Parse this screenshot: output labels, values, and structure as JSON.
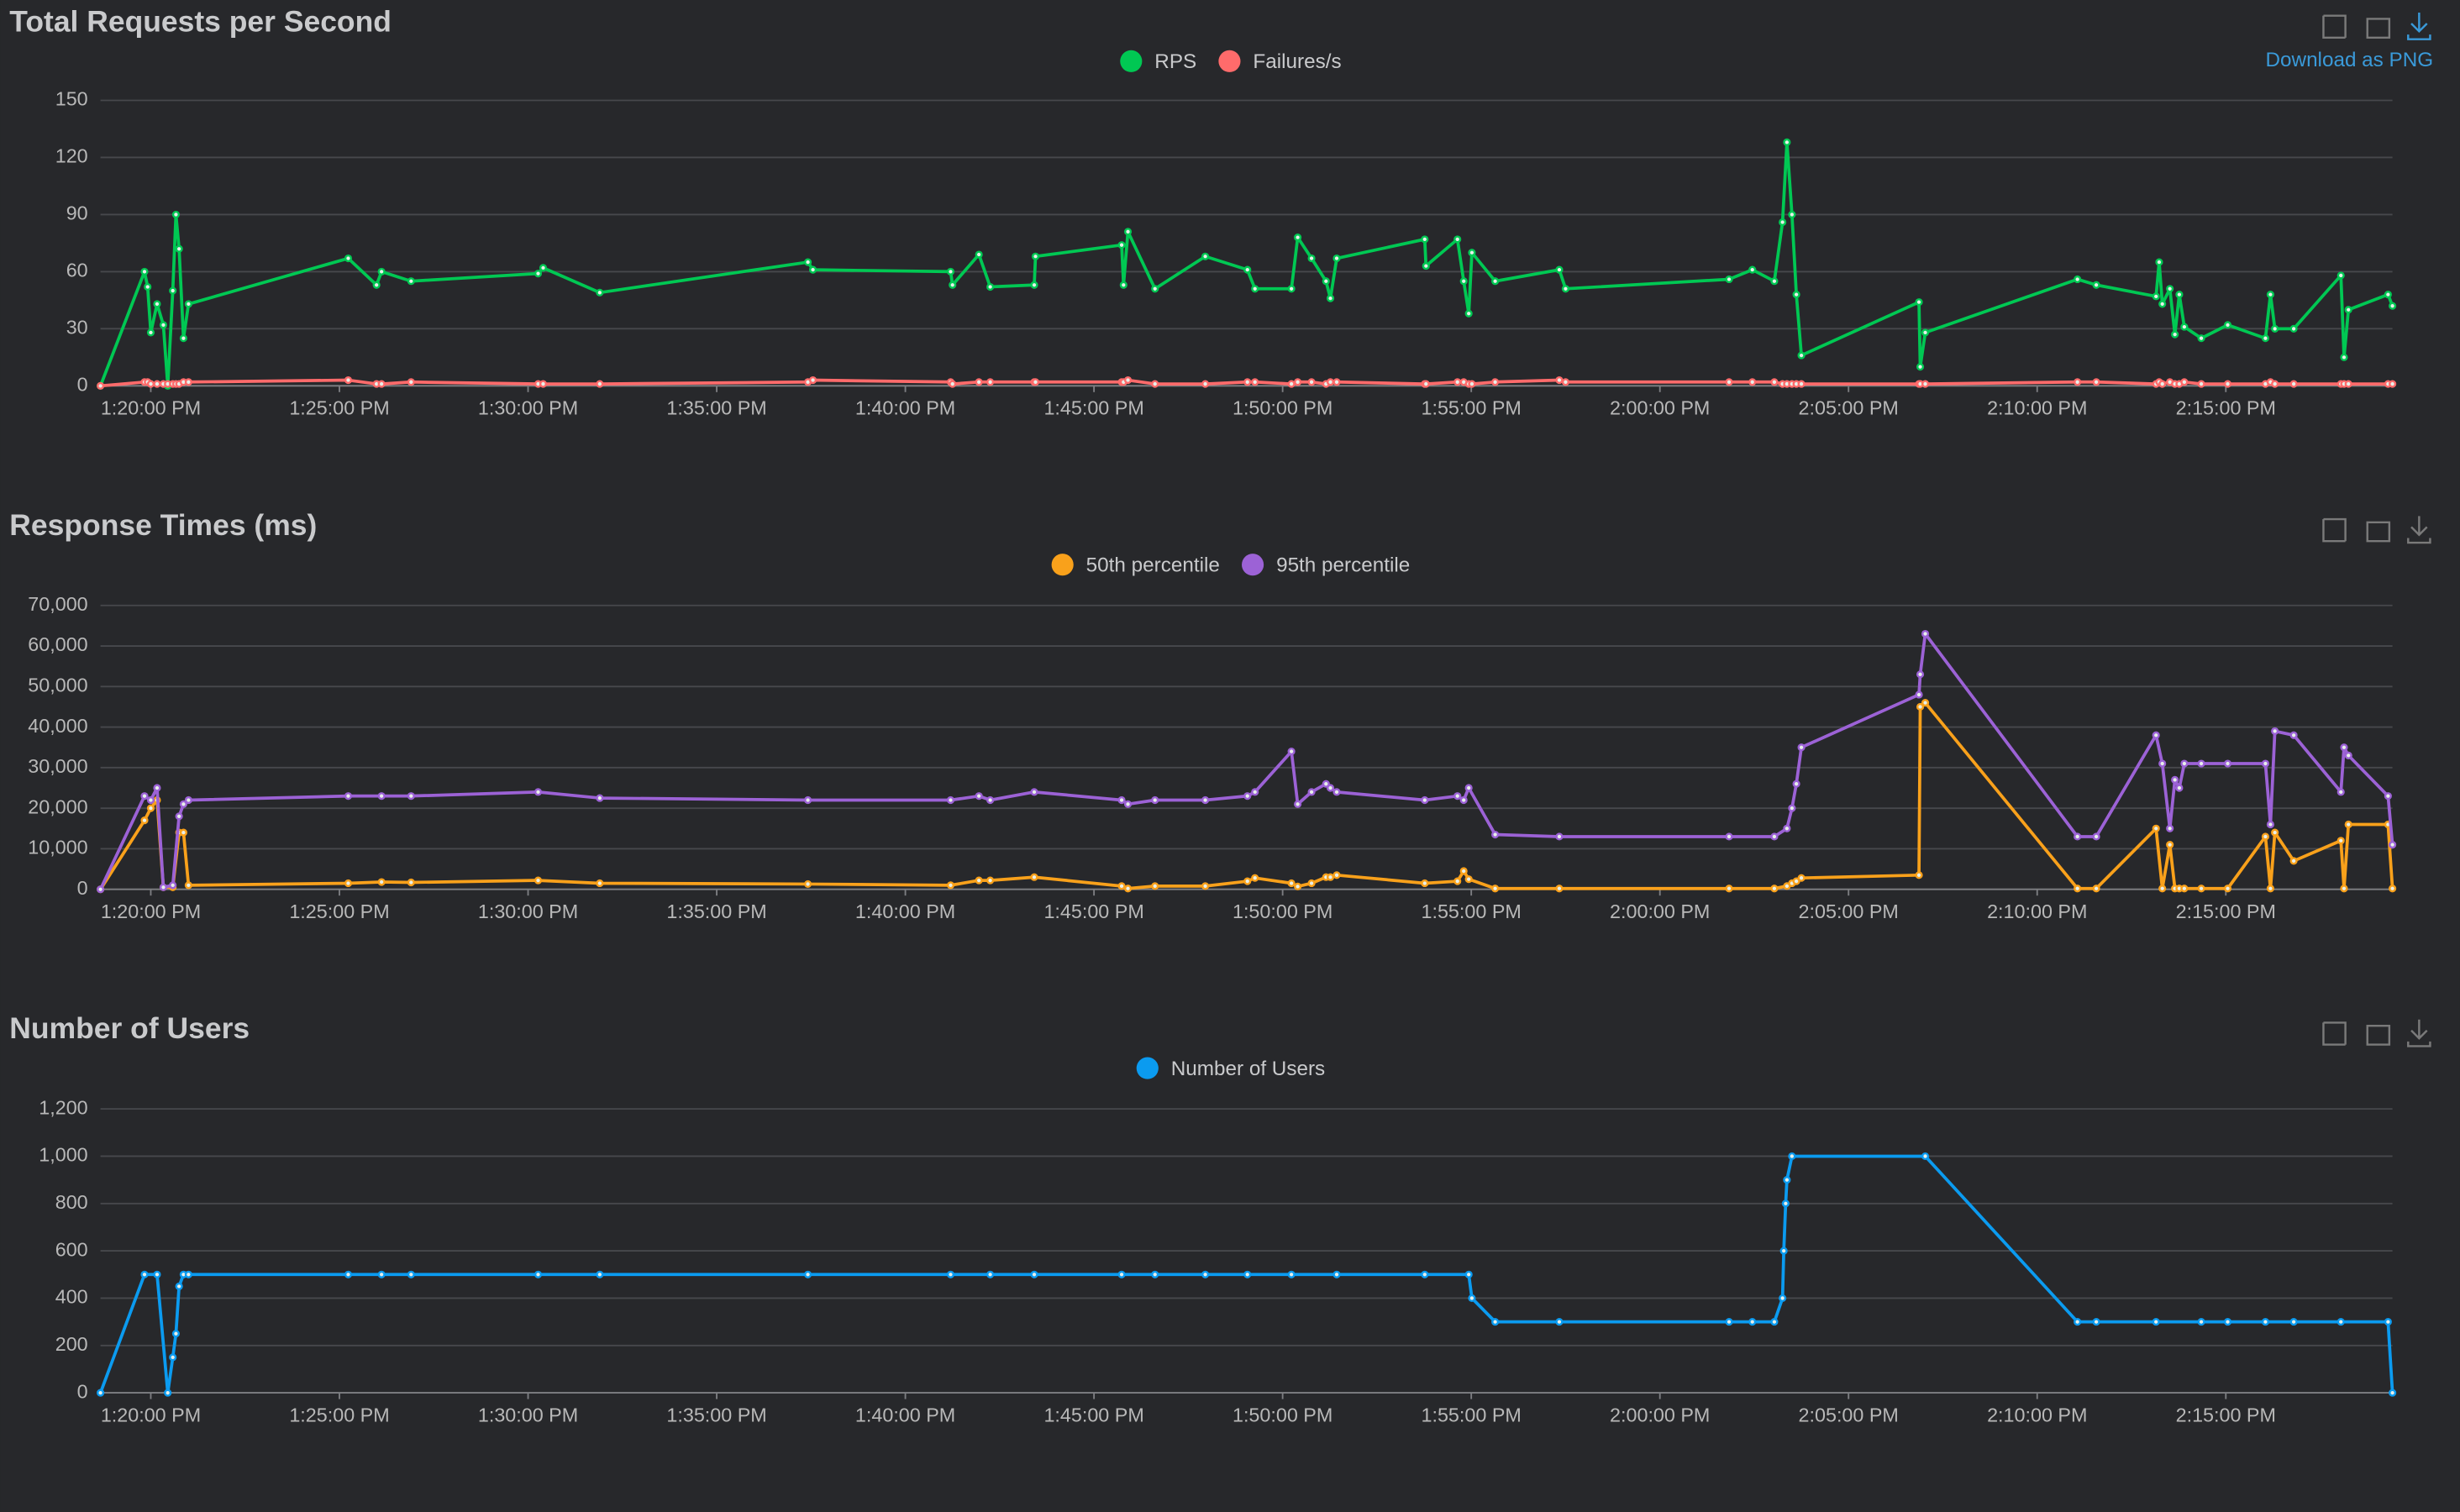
{
  "chart_data": [
    {
      "type": "line",
      "title": "Total Requests per Second",
      "toolbox_label": "Download as PNG",
      "legend": "top",
      "grid": true,
      "x": [
        "1:18:40 PM",
        "1:19:50 PM",
        "1:19:55 PM",
        "1:20:00 PM",
        "1:20:10 PM",
        "1:20:20 PM",
        "1:20:27 PM",
        "1:20:35 PM",
        "1:20:40 PM",
        "1:20:45 PM",
        "1:20:52 PM",
        "1:21:00 PM",
        "1:25:14 PM",
        "1:25:59 PM",
        "1:26:07 PM",
        "1:26:54 PM",
        "1:30:16 PM",
        "1:30:24 PM",
        "1:31:54 PM",
        "1:37:25 PM",
        "1:37:33 PM",
        "1:41:12 PM",
        "1:41:15 PM",
        "1:41:57 PM",
        "1:42:15 PM",
        "1:43:25 PM",
        "1:43:27 PM",
        "1:45:44 PM",
        "1:45:47 PM",
        "1:45:54 PM",
        "1:46:37 PM",
        "1:47:57 PM",
        "1:49:04 PM",
        "1:49:16 PM",
        "1:50:14 PM",
        "1:50:24 PM",
        "1:50:46 PM",
        "1:51:09 PM",
        "1:51:16 PM",
        "1:51:26 PM",
        "1:53:46 PM",
        "1:53:48 PM",
        "1:54:38 PM",
        "1:54:48 PM",
        "1:54:56 PM",
        "1:55:01 PM",
        "1:55:38 PM",
        "1:57:20 PM",
        "1:57:30 PM",
        "2:01:50 PM",
        "2:02:27 PM",
        "2:03:02 PM",
        "2:03:15 PM",
        "2:03:22 PM",
        "2:03:30 PM",
        "2:03:37 PM",
        "2:03:45 PM",
        "2:06:52 PM",
        "2:06:54 PM",
        "2:07:02 PM",
        "2:11:04 PM",
        "2:11:34 PM",
        "2:13:09 PM",
        "2:13:14 PM",
        "2:13:19 PM",
        "2:13:31 PM",
        "2:13:39 PM",
        "2:13:46 PM",
        "2:13:54 PM",
        "2:14:21 PM",
        "2:15:03 PM",
        "2:16:03 PM",
        "2:16:11 PM",
        "2:16:18 PM",
        "2:16:48 PM",
        "2:18:03 PM",
        "2:18:08 PM",
        "2:18:15 PM",
        "2:19:18 PM",
        "2:19:25 PM"
      ],
      "xlim": [
        "1:18:40 PM",
        "2:19:25 PM"
      ],
      "xticks": [
        "1:20:00 PM",
        "1:25:00 PM",
        "1:30:00 PM",
        "1:35:00 PM",
        "1:40:00 PM",
        "1:45:00 PM",
        "1:50:00 PM",
        "1:55:00 PM",
        "2:00:00 PM",
        "2:05:00 PM",
        "2:10:00 PM",
        "2:15:00 PM"
      ],
      "ylim": [
        0,
        150
      ],
      "yticks": [
        0,
        30,
        60,
        90,
        120,
        150
      ],
      "series": [
        {
          "name": "RPS",
          "color": "#00c853",
          "values": [
            0,
            60,
            52,
            28,
            43,
            32,
            0,
            50,
            90,
            72,
            25,
            43,
            67,
            53,
            60,
            55,
            59,
            62,
            49,
            65,
            61,
            60,
            53,
            69,
            52,
            53,
            68,
            74,
            53,
            81,
            51,
            68,
            61,
            51,
            51,
            78,
            67,
            55,
            46,
            67,
            77,
            63,
            77,
            55,
            38,
            70,
            55,
            61,
            51,
            56,
            61,
            55,
            86,
            128,
            90,
            48,
            16,
            44,
            10,
            28,
            56,
            53,
            47,
            65,
            43,
            51,
            27,
            48,
            31,
            25,
            32,
            25,
            48,
            30,
            30,
            58,
            15,
            40,
            48,
            42
          ]
        },
        {
          "name": "Failures/s",
          "color": "#ff6b6b",
          "values": [
            0,
            2,
            2,
            1,
            1,
            1,
            1,
            1,
            1,
            1,
            2,
            2,
            3,
            1,
            1,
            2,
            1,
            1,
            1,
            2,
            3,
            2,
            1,
            2,
            2,
            2,
            2,
            2,
            2,
            3,
            1,
            1,
            2,
            2,
            1,
            2,
            2,
            1,
            2,
            2,
            1,
            1,
            2,
            2,
            1,
            1,
            2,
            3,
            2,
            2,
            2,
            2,
            1,
            1,
            1,
            1,
            1,
            1,
            1,
            1,
            2,
            2,
            1,
            2,
            1,
            2,
            1,
            1,
            2,
            1,
            1,
            1,
            2,
            1,
            1,
            1,
            1,
            1,
            1,
            1
          ]
        }
      ]
    },
    {
      "type": "line",
      "title": "Response Times (ms)",
      "legend": "top",
      "grid": true,
      "x": [
        "1:18:40 PM",
        "1:19:50 PM",
        "1:20:00 PM",
        "1:20:10 PM",
        "1:20:20 PM",
        "1:20:35 PM",
        "1:20:45 PM",
        "1:20:52 PM",
        "1:21:00 PM",
        "1:25:14 PM",
        "1:26:07 PM",
        "1:26:54 PM",
        "1:30:16 PM",
        "1:31:54 PM",
        "1:37:25 PM",
        "1:41:12 PM",
        "1:41:57 PM",
        "1:42:15 PM",
        "1:43:25 PM",
        "1:45:44 PM",
        "1:45:54 PM",
        "1:46:37 PM",
        "1:47:57 PM",
        "1:49:04 PM",
        "1:49:16 PM",
        "1:50:14 PM",
        "1:50:24 PM",
        "1:50:46 PM",
        "1:51:09 PM",
        "1:51:16 PM",
        "1:51:26 PM",
        "1:53:46 PM",
        "1:54:38 PM",
        "1:54:48 PM",
        "1:54:56 PM",
        "1:55:38 PM",
        "1:57:20 PM",
        "2:01:50 PM",
        "2:03:02 PM",
        "2:03:22 PM",
        "2:03:30 PM",
        "2:03:37 PM",
        "2:03:45 PM",
        "2:06:52 PM",
        "2:06:54 PM",
        "2:07:02 PM",
        "2:11:04 PM",
        "2:11:34 PM",
        "2:13:09 PM",
        "2:13:19 PM",
        "2:13:31 PM",
        "2:13:39 PM",
        "2:13:46 PM",
        "2:13:54 PM",
        "2:14:21 PM",
        "2:15:03 PM",
        "2:16:03 PM",
        "2:16:11 PM",
        "2:16:18 PM",
        "2:16:48 PM",
        "2:18:03 PM",
        "2:18:08 PM",
        "2:18:15 PM",
        "2:19:18 PM",
        "2:19:25 PM"
      ],
      "xlim": [
        "1:18:40 PM",
        "2:19:25 PM"
      ],
      "xticks": [
        "1:20:00 PM",
        "1:25:00 PM",
        "1:30:00 PM",
        "1:35:00 PM",
        "1:40:00 PM",
        "1:45:00 PM",
        "1:50:00 PM",
        "1:55:00 PM",
        "2:00:00 PM",
        "2:05:00 PM",
        "2:10:00 PM",
        "2:15:00 PM"
      ],
      "ylim": [
        0,
        70000
      ],
      "yticks": [
        0,
        {
          "value": 10000,
          "label": "10,000"
        },
        {
          "value": 20000,
          "label": "20,000"
        },
        {
          "value": 30000,
          "label": "30,000"
        },
        {
          "value": 40000,
          "label": "40,000"
        },
        {
          "value": 50000,
          "label": "50,000"
        },
        {
          "value": 60000,
          "label": "60,000"
        },
        {
          "value": 70000,
          "label": "70,000"
        }
      ],
      "series": [
        {
          "name": "50th percentile",
          "color": "#f9a11b",
          "values": [
            0,
            17000,
            20000,
            22000,
            500,
            500,
            14000,
            14000,
            1000,
            1500,
            1800,
            1700,
            2200,
            1500,
            1300,
            1000,
            2200,
            2200,
            3000,
            800,
            200,
            800,
            800,
            2000,
            2800,
            1500,
            700,
            1500,
            3000,
            3000,
            3500,
            1500,
            2000,
            4500,
            2500,
            200,
            200,
            200,
            200,
            800,
            1500,
            2000,
            2800,
            3500,
            45000,
            46000,
            200,
            200,
            15000,
            200,
            11000,
            200,
            200,
            200,
            200,
            200,
            13000,
            200,
            14000,
            7000,
            12000,
            200,
            16000,
            16000,
            200
          ]
        },
        {
          "name": "95th percentile",
          "color": "#9c62d6",
          "values": [
            0,
            23000,
            22000,
            25000,
            500,
            1000,
            18000,
            21000,
            22000,
            23000,
            23000,
            23000,
            24000,
            22500,
            22000,
            22000,
            23000,
            22000,
            24000,
            22000,
            21000,
            22000,
            22000,
            23000,
            24000,
            34000,
            21000,
            24000,
            26000,
            25000,
            24000,
            22000,
            23000,
            22000,
            25000,
            13500,
            13000,
            13000,
            13000,
            15000,
            20000,
            26000,
            35000,
            48000,
            53000,
            63000,
            13000,
            13000,
            38000,
            31000,
            15000,
            27000,
            25000,
            31000,
            31000,
            31000,
            31000,
            16000,
            39000,
            38000,
            24000,
            35000,
            33000,
            23000,
            11000
          ]
        }
      ]
    },
    {
      "type": "line",
      "title": "Number of Users",
      "legend": "top",
      "grid": true,
      "x": [
        "1:18:40 PM",
        "1:19:50 PM",
        "1:20:10 PM",
        "1:20:27 PM",
        "1:20:35 PM",
        "1:20:40 PM",
        "1:20:45 PM",
        "1:20:52 PM",
        "1:21:00 PM",
        "1:25:14 PM",
        "1:26:07 PM",
        "1:26:54 PM",
        "1:30:16 PM",
        "1:31:54 PM",
        "1:37:25 PM",
        "1:41:12 PM",
        "1:42:15 PM",
        "1:43:25 PM",
        "1:45:44 PM",
        "1:46:37 PM",
        "1:47:57 PM",
        "1:49:04 PM",
        "1:50:14 PM",
        "1:51:26 PM",
        "1:53:46 PM",
        "1:54:56 PM",
        "1:55:01 PM",
        "1:55:38 PM",
        "1:57:20 PM",
        "2:01:50 PM",
        "2:02:27 PM",
        "2:03:02 PM",
        "2:03:15 PM",
        "2:03:17 PM",
        "2:03:20 PM",
        "2:03:22 PM",
        "2:03:30 PM",
        "2:07:02 PM",
        "2:11:04 PM",
        "2:11:34 PM",
        "2:13:09 PM",
        "2:14:21 PM",
        "2:15:03 PM",
        "2:16:03 PM",
        "2:16:48 PM",
        "2:18:03 PM",
        "2:19:18 PM",
        "2:19:25 PM"
      ],
      "xlim": [
        "1:18:40 PM",
        "2:19:25 PM"
      ],
      "xticks": [
        "1:20:00 PM",
        "1:25:00 PM",
        "1:30:00 PM",
        "1:35:00 PM",
        "1:40:00 PM",
        "1:45:00 PM",
        "1:50:00 PM",
        "1:55:00 PM",
        "2:00:00 PM",
        "2:05:00 PM",
        "2:10:00 PM",
        "2:15:00 PM"
      ],
      "ylim": [
        0,
        1200
      ],
      "yticks": [
        0,
        200,
        400,
        600,
        800,
        {
          "value": 1000,
          "label": "1,000"
        },
        {
          "value": 1200,
          "label": "1,200"
        }
      ],
      "series": [
        {
          "name": "Number of Users",
          "color": "#0b9bf0",
          "values": [
            0,
            500,
            500,
            0,
            150,
            250,
            450,
            500,
            500,
            500,
            500,
            500,
            500,
            500,
            500,
            500,
            500,
            500,
            500,
            500,
            500,
            500,
            500,
            500,
            500,
            500,
            400,
            300,
            300,
            300,
            300,
            300,
            400,
            600,
            800,
            900,
            1000,
            1000,
            300,
            300,
            300,
            300,
            300,
            300,
            300,
            300,
            300,
            0
          ]
        }
      ]
    }
  ]
}
